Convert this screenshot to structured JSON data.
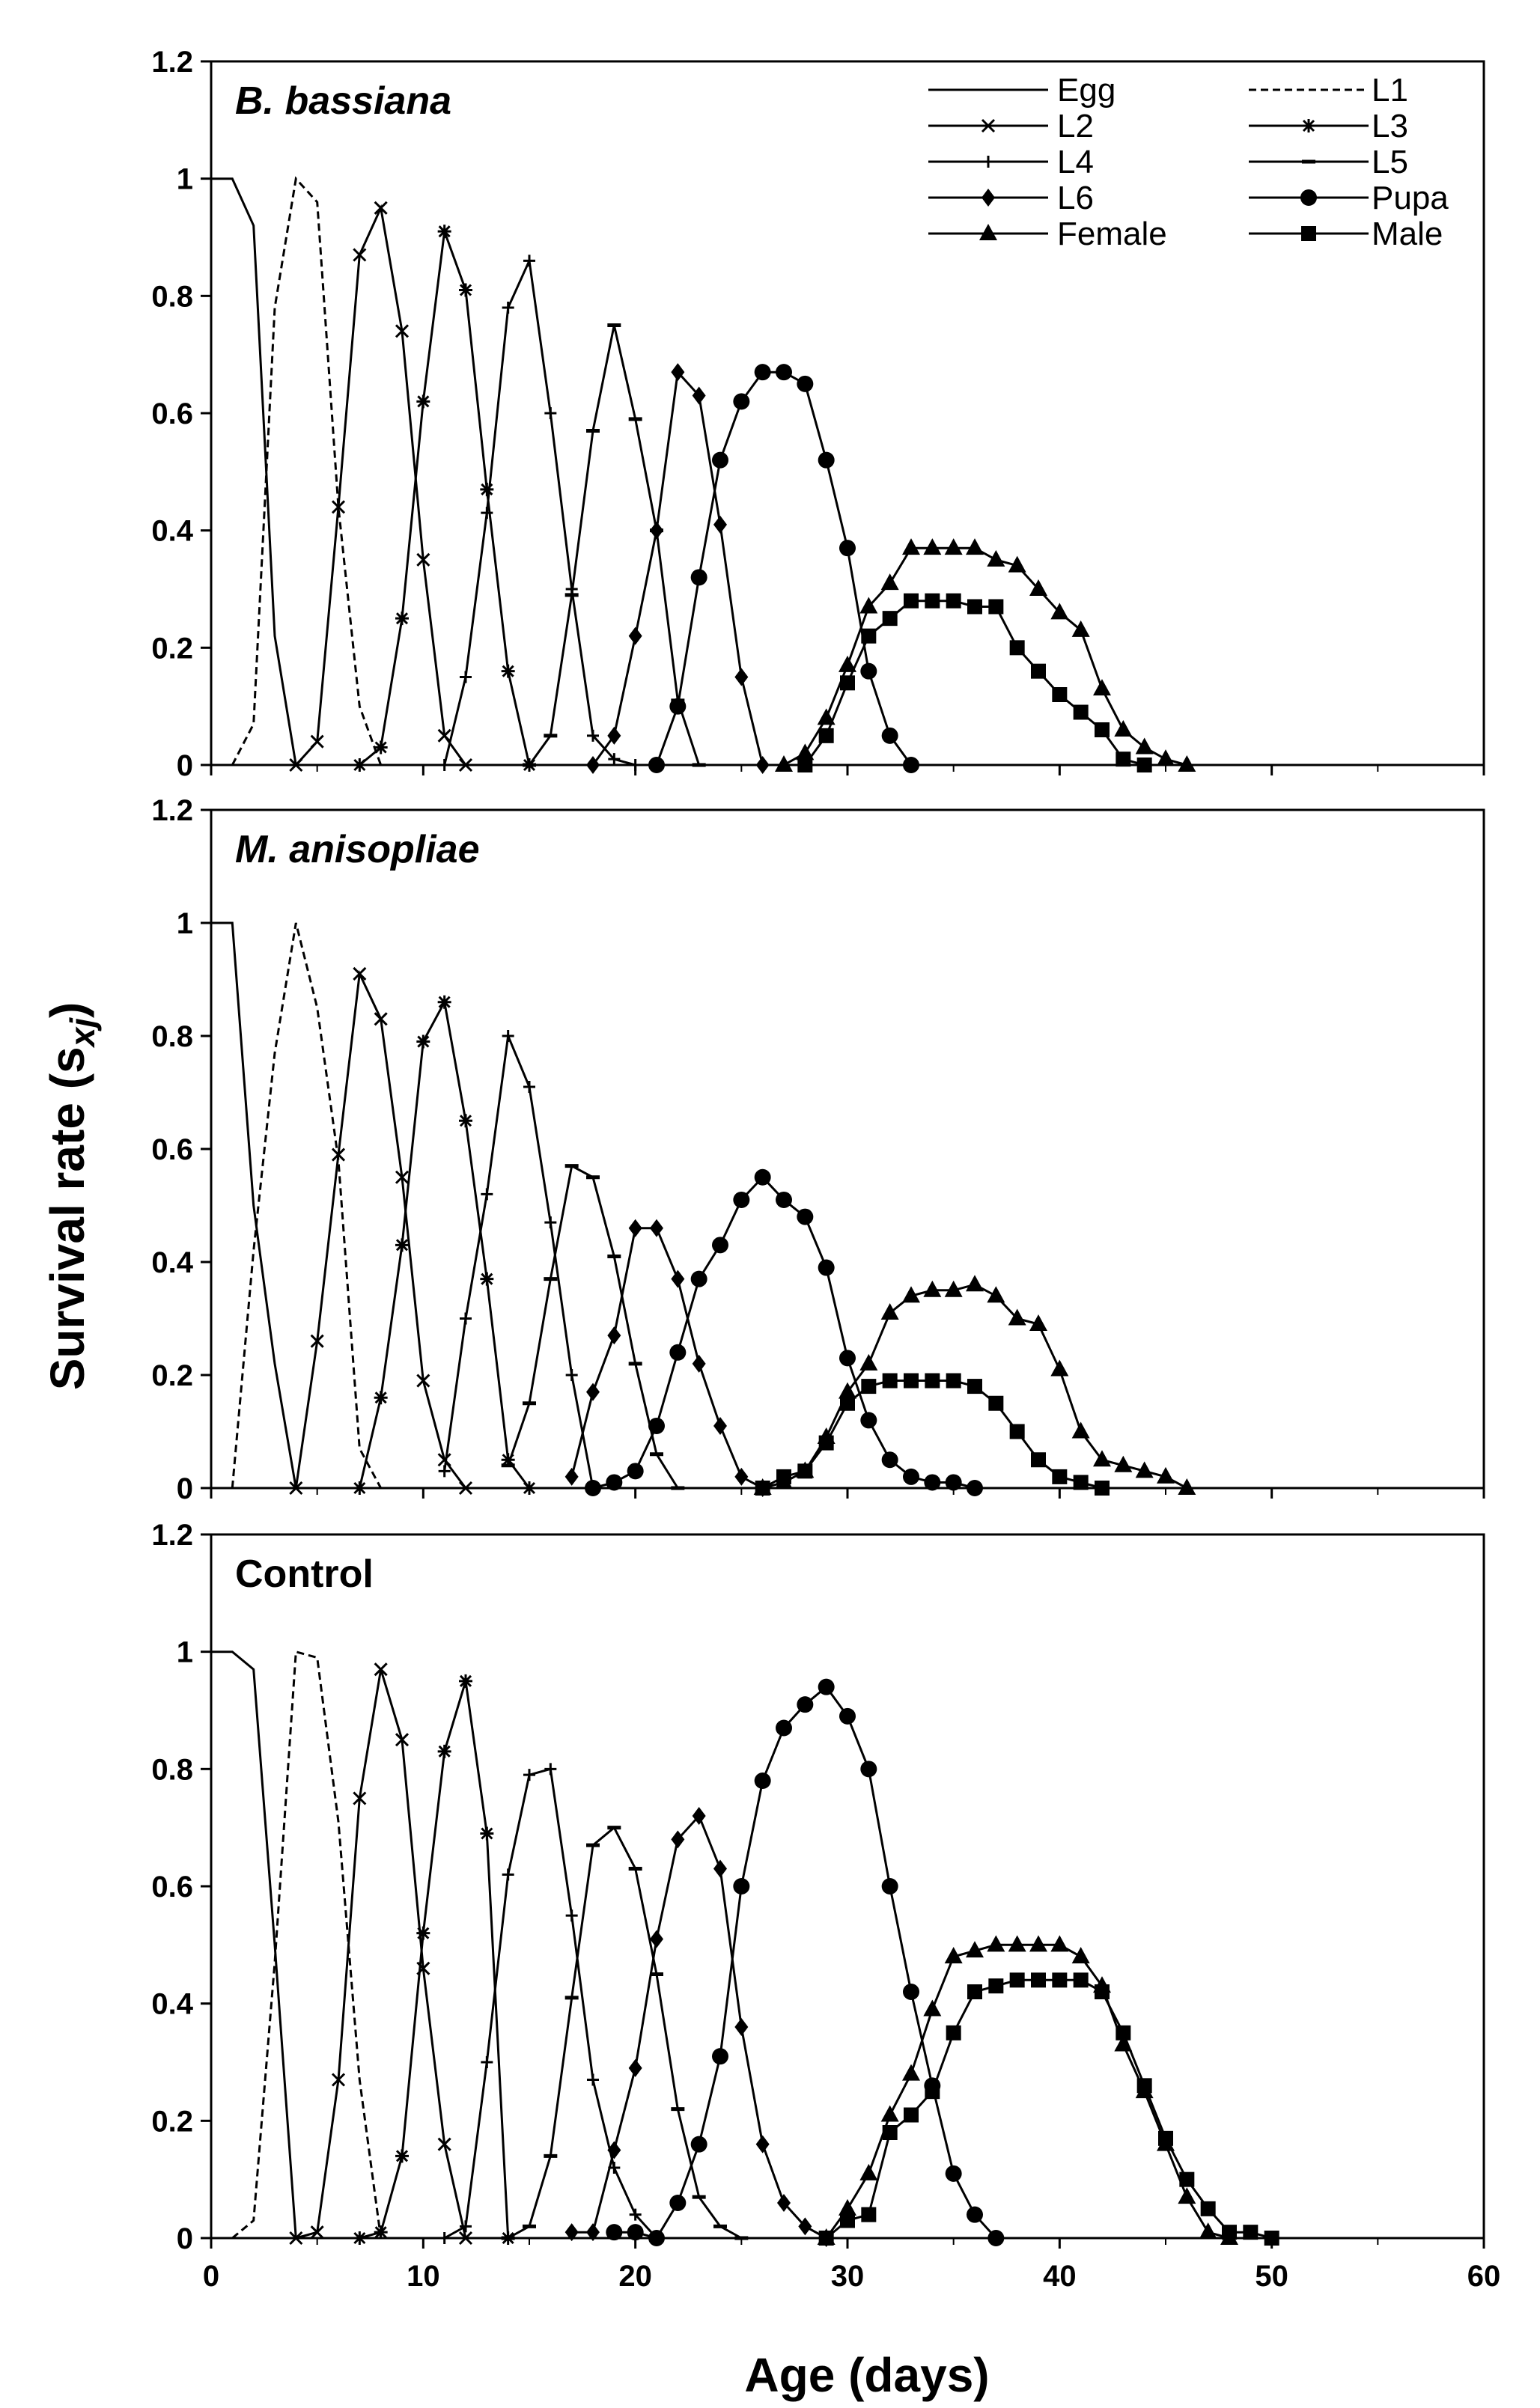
{
  "chart_data": {
    "type": "line",
    "figure": "Age-stage specific survival rates under fungal treatments",
    "xlabel": "Age (days)",
    "ylabel": "Survival rate (s",
    "ylabel_sub": "xj",
    "ylabel_close": ")",
    "xlim": [
      0,
      60
    ],
    "ylim": [
      0,
      1.2
    ],
    "xticks": [
      "0",
      "10",
      "20",
      "30",
      "40",
      "50",
      "60"
    ],
    "yticks": [
      "0",
      "0.2",
      "0.4",
      "0.6",
      "0.8",
      "1",
      "1.2"
    ],
    "legend": {
      "position": "top-right of first panel",
      "entries": [
        {
          "name": "Egg",
          "marker": "none",
          "dash": "solid"
        },
        {
          "name": "L1",
          "marker": "none",
          "dash": "dashed"
        },
        {
          "name": "L2",
          "marker": "x",
          "dash": "solid"
        },
        {
          "name": "L3",
          "marker": "star",
          "dash": "solid"
        },
        {
          "name": "L4",
          "marker": "plus",
          "dash": "solid"
        },
        {
          "name": "L5",
          "marker": "hbar",
          "dash": "solid"
        },
        {
          "name": "L6",
          "marker": "diamond",
          "dash": "solid"
        },
        {
          "name": "Pupa",
          "marker": "circle",
          "dash": "solid"
        },
        {
          "name": "Female",
          "marker": "triangle",
          "dash": "solid"
        },
        {
          "name": "Male",
          "marker": "square",
          "dash": "solid"
        }
      ]
    },
    "panels": [
      {
        "title": "B. bassiana",
        "italic": true,
        "series": [
          {
            "name": "Egg",
            "x": [
              0,
              1,
              2,
              3,
              4
            ],
            "y": [
              1,
              1,
              0.92,
              0.22,
              0
            ]
          },
          {
            "name": "L1",
            "x": [
              1,
              2,
              3,
              4,
              5,
              6,
              7,
              8
            ],
            "y": [
              0,
              0.07,
              0.78,
              1.0,
              0.96,
              0.44,
              0.1,
              0
            ]
          },
          {
            "name": "L2",
            "x": [
              4,
              5,
              6,
              7,
              8,
              9,
              10,
              11,
              12
            ],
            "y": [
              0,
              0.04,
              0.44,
              0.87,
              0.95,
              0.74,
              0.35,
              0.05,
              0
            ]
          },
          {
            "name": "L3",
            "x": [
              7,
              8,
              9,
              10,
              11,
              12,
              13,
              14,
              15
            ],
            "y": [
              0,
              0.03,
              0.25,
              0.62,
              0.91,
              0.81,
              0.47,
              0.16,
              0
            ]
          },
          {
            "name": "L4",
            "x": [
              11,
              12,
              13,
              14,
              15,
              16,
              17,
              18,
              19,
              20
            ],
            "y": [
              0,
              0.15,
              0.43,
              0.78,
              0.86,
              0.6,
              0.3,
              0.05,
              0.01,
              0
            ]
          },
          {
            "name": "L5",
            "x": [
              15,
              16,
              17,
              18,
              19,
              20,
              21,
              22,
              23
            ],
            "y": [
              0,
              0.05,
              0.29,
              0.57,
              0.75,
              0.59,
              0.4,
              0.11,
              0
            ]
          },
          {
            "name": "L6",
            "x": [
              18,
              19,
              20,
              21,
              22,
              23,
              24,
              25,
              26
            ],
            "y": [
              0,
              0.05,
              0.22,
              0.4,
              0.67,
              0.63,
              0.41,
              0.15,
              0
            ]
          },
          {
            "name": "Pupa",
            "x": [
              21,
              22,
              23,
              24,
              25,
              26,
              27,
              28,
              29,
              30,
              31,
              32,
              33
            ],
            "y": [
              0,
              0.1,
              0.32,
              0.52,
              0.62,
              0.67,
              0.67,
              0.65,
              0.52,
              0.37,
              0.16,
              0.05,
              0
            ]
          },
          {
            "name": "Female",
            "x": [
              27,
              28,
              29,
              30,
              31,
              32,
              33,
              34,
              35,
              36,
              37,
              38,
              39,
              40,
              41,
              42,
              43,
              44,
              45,
              46
            ],
            "y": [
              0,
              0.02,
              0.08,
              0.17,
              0.27,
              0.31,
              0.37,
              0.37,
              0.37,
              0.37,
              0.35,
              0.34,
              0.3,
              0.26,
              0.23,
              0.13,
              0.06,
              0.03,
              0.01,
              0
            ]
          },
          {
            "name": "Male",
            "x": [
              28,
              29,
              30,
              31,
              32,
              33,
              34,
              35,
              36,
              37,
              38,
              39,
              40,
              41,
              42,
              43,
              44
            ],
            "y": [
              0,
              0.05,
              0.14,
              0.22,
              0.25,
              0.28,
              0.28,
              0.28,
              0.27,
              0.27,
              0.2,
              0.16,
              0.12,
              0.09,
              0.06,
              0.01,
              0
            ]
          }
        ]
      },
      {
        "title": "M. anisopliae",
        "italic": true,
        "series": [
          {
            "name": "Egg",
            "x": [
              0,
              1,
              2,
              3,
              4
            ],
            "y": [
              1,
              1,
              0.5,
              0.22,
              0
            ]
          },
          {
            "name": "L1",
            "x": [
              1,
              2,
              3,
              4,
              5,
              6,
              7,
              8
            ],
            "y": [
              0,
              0.42,
              0.77,
              1.0,
              0.85,
              0.58,
              0.07,
              0
            ]
          },
          {
            "name": "L2",
            "x": [
              4,
              5,
              6,
              7,
              8,
              9,
              10,
              11,
              12
            ],
            "y": [
              0,
              0.26,
              0.59,
              0.91,
              0.83,
              0.55,
              0.19,
              0.05,
              0
            ]
          },
          {
            "name": "L3",
            "x": [
              7,
              8,
              9,
              10,
              11,
              12,
              13,
              14,
              15
            ],
            "y": [
              0,
              0.16,
              0.43,
              0.79,
              0.86,
              0.65,
              0.37,
              0.05,
              0
            ]
          },
          {
            "name": "L4",
            "x": [
              11,
              12,
              13,
              14,
              15,
              16,
              17,
              18
            ],
            "y": [
              0.03,
              0.3,
              0.52,
              0.8,
              0.71,
              0.47,
              0.2,
              0
            ]
          },
          {
            "name": "L5",
            "x": [
              14,
              15,
              16,
              17,
              18,
              19,
              20,
              21,
              22
            ],
            "y": [
              0.04,
              0.15,
              0.37,
              0.57,
              0.55,
              0.41,
              0.22,
              0.06,
              0
            ]
          },
          {
            "name": "L6",
            "x": [
              17,
              18,
              19,
              20,
              21,
              22,
              23,
              24,
              25,
              26
            ],
            "y": [
              0.02,
              0.17,
              0.27,
              0.46,
              0.46,
              0.37,
              0.22,
              0.11,
              0.02,
              0
            ]
          },
          {
            "name": "Pupa",
            "x": [
              18,
              19,
              20,
              21,
              22,
              23,
              24,
              25,
              26,
              27,
              28,
              29,
              30,
              31,
              32,
              33,
              34,
              35,
              36
            ],
            "y": [
              0,
              0.01,
              0.03,
              0.11,
              0.24,
              0.37,
              0.43,
              0.51,
              0.55,
              0.51,
              0.48,
              0.39,
              0.23,
              0.12,
              0.05,
              0.02,
              0.01,
              0.01,
              0
            ]
          },
          {
            "name": "Female",
            "x": [
              26,
              27,
              28,
              29,
              30,
              31,
              32,
              33,
              34,
              35,
              36,
              37,
              38,
              39,
              40,
              41,
              42,
              43,
              44,
              45,
              46
            ],
            "y": [
              0,
              0.01,
              0.03,
              0.09,
              0.17,
              0.22,
              0.31,
              0.34,
              0.35,
              0.35,
              0.36,
              0.34,
              0.3,
              0.29,
              0.21,
              0.1,
              0.05,
              0.04,
              0.03,
              0.02,
              0
            ]
          },
          {
            "name": "Male",
            "x": [
              26,
              27,
              28,
              29,
              30,
              31,
              32,
              33,
              34,
              35,
              36,
              37,
              38,
              39,
              40,
              41,
              42
            ],
            "y": [
              0,
              0.02,
              0.03,
              0.08,
              0.15,
              0.18,
              0.19,
              0.19,
              0.19,
              0.19,
              0.18,
              0.15,
              0.1,
              0.05,
              0.02,
              0.01,
              0
            ]
          }
        ]
      },
      {
        "title": "Control",
        "italic": false,
        "series": [
          {
            "name": "Egg",
            "x": [
              0,
              1,
              2,
              3,
              4
            ],
            "y": [
              1,
              1,
              0.97,
              0.5,
              0
            ]
          },
          {
            "name": "L1",
            "x": [
              1,
              2,
              3,
              4,
              5,
              6,
              7,
              8
            ],
            "y": [
              0,
              0.03,
              0.47,
              1.0,
              0.99,
              0.71,
              0.27,
              0
            ]
          },
          {
            "name": "L2",
            "x": [
              4,
              5,
              6,
              7,
              8,
              9,
              10,
              11,
              12
            ],
            "y": [
              0,
              0.01,
              0.27,
              0.75,
              0.97,
              0.85,
              0.46,
              0.16,
              0
            ]
          },
          {
            "name": "L3",
            "x": [
              7,
              8,
              9,
              10,
              11,
              12,
              13,
              14
            ],
            "y": [
              0,
              0.01,
              0.14,
              0.52,
              0.83,
              0.95,
              0.69,
              0
            ]
          },
          {
            "name": "L4",
            "x": [
              11,
              12,
              13,
              14,
              15,
              16,
              17,
              18,
              19,
              20,
              21
            ],
            "y": [
              0,
              0.02,
              0.3,
              0.62,
              0.79,
              0.8,
              0.55,
              0.27,
              0.12,
              0.04,
              0
            ]
          },
          {
            "name": "L5",
            "x": [
              14,
              15,
              16,
              17,
              18,
              19,
              20,
              21,
              22,
              23,
              24,
              25
            ],
            "y": [
              0,
              0.02,
              0.14,
              0.41,
              0.67,
              0.7,
              0.63,
              0.45,
              0.22,
              0.07,
              0.02,
              0
            ]
          },
          {
            "name": "L6",
            "x": [
              17,
              18,
              19,
              20,
              21,
              22,
              23,
              24,
              25,
              26,
              27,
              28,
              29
            ],
            "y": [
              0.01,
              0.01,
              0.15,
              0.29,
              0.51,
              0.68,
              0.72,
              0.63,
              0.36,
              0.16,
              0.06,
              0.02,
              0
            ]
          },
          {
            "name": "Pupa",
            "x": [
              19,
              20,
              21,
              22,
              23,
              24,
              25,
              26,
              27,
              28,
              29,
              30,
              31,
              32,
              33,
              34,
              35,
              36,
              37
            ],
            "y": [
              0.01,
              0.01,
              0,
              0.06,
              0.16,
              0.31,
              0.6,
              0.78,
              0.87,
              0.91,
              0.94,
              0.89,
              0.8,
              0.6,
              0.42,
              0.26,
              0.11,
              0.04,
              0
            ]
          },
          {
            "name": "Female",
            "x": [
              29,
              30,
              31,
              32,
              33,
              34,
              35,
              36,
              37,
              38,
              39,
              40,
              41,
              42,
              43,
              44,
              45,
              46,
              47,
              48
            ],
            "y": [
              0,
              0.05,
              0.11,
              0.21,
              0.28,
              0.39,
              0.48,
              0.49,
              0.5,
              0.5,
              0.5,
              0.5,
              0.48,
              0.43,
              0.33,
              0.25,
              0.16,
              0.07,
              0.01,
              0
            ]
          },
          {
            "name": "Male",
            "x": [
              29,
              30,
              31,
              32,
              33,
              34,
              35,
              36,
              37,
              38,
              39,
              40,
              41,
              42,
              43,
              44,
              45,
              46,
              47,
              48,
              49,
              50
            ],
            "y": [
              0,
              0.03,
              0.04,
              0.18,
              0.21,
              0.25,
              0.35,
              0.42,
              0.43,
              0.44,
              0.44,
              0.44,
              0.44,
              0.42,
              0.35,
              0.26,
              0.17,
              0.1,
              0.05,
              0.01,
              0.01,
              0
            ]
          }
        ]
      }
    ]
  }
}
